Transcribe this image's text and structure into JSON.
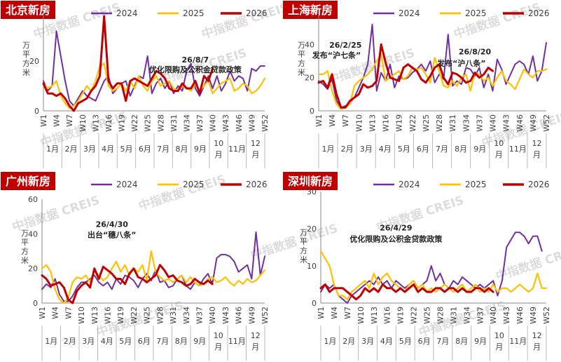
{
  "colors": {
    "s2024": "#7030A0",
    "s2025": "#FFC000",
    "s2026": "#C00000",
    "title_bg": "#C00000",
    "axis": "#888888",
    "text": "#404040"
  },
  "watermark": "中指数据 CREIS",
  "weeks": [
    "W1",
    "W4",
    "W7",
    "W10",
    "W13",
    "W16",
    "W19",
    "W22",
    "W25",
    "W28",
    "W31",
    "W34",
    "W37",
    "W40",
    "W43",
    "W46",
    "W49",
    "W52"
  ],
  "months": [
    "1月",
    "2月",
    "3月",
    "4月",
    "5月",
    "6月",
    "7月",
    "8月",
    "9月",
    "10\n月",
    "11月",
    "12\n月"
  ],
  "chart_data": [
    {
      "type": "line",
      "title": "北京新房",
      "ylabel": "万平方米",
      "ylim": [
        0,
        40
      ],
      "yticks": [
        0,
        20
      ],
      "x_label_weeks": [
        "W1",
        "W4",
        "W7",
        "W10",
        "W13",
        "W16",
        "W19",
        "W22",
        "W25",
        "W28",
        "W31",
        "W34",
        "W37",
        "W40",
        "W43",
        "W46",
        "W49",
        "W52"
      ],
      "month_labels": [
        "1月",
        "2月",
        "3月",
        "4月",
        "5月",
        "6月",
        "7月",
        "8月",
        "9月",
        "10\n月",
        "11月",
        "12\n月"
      ],
      "legend": [
        "2024",
        "2025",
        "2026"
      ],
      "annotations": [
        {
          "text": "26/8/7",
          "week": 36,
          "value": 19.5
        },
        {
          "text": "优化限购及公积金贷款政策",
          "week": 36,
          "value": 15.5
        }
      ],
      "series": [
        {
          "name": "2024",
          "values": [
            12,
            8,
            10,
            32,
            22,
            12,
            4,
            2,
            5,
            8,
            6,
            5,
            4,
            8,
            12,
            14,
            7,
            9,
            11,
            12,
            6,
            10,
            14,
            13,
            22,
            7,
            11,
            13,
            9,
            12,
            7,
            10,
            8,
            16,
            19,
            9,
            6,
            10,
            14,
            9,
            14,
            8,
            11,
            16,
            12,
            14,
            13,
            8,
            17,
            16,
            18,
            18
          ]
        },
        {
          "name": "2025",
          "values": [
            11,
            9,
            10,
            12,
            6,
            3,
            1,
            2,
            4,
            7,
            10,
            8,
            12,
            18,
            19,
            10,
            8,
            9,
            11,
            8,
            12,
            9,
            14,
            10,
            8,
            12,
            14,
            10,
            11,
            12,
            9,
            8,
            10,
            9,
            8,
            11,
            8,
            10,
            12,
            7,
            9,
            11,
            12,
            13,
            8,
            9,
            11,
            10,
            7,
            8,
            10,
            13
          ]
        },
        {
          "name": "2026",
          "values": [
            11,
            7,
            7,
            6,
            7,
            5,
            2,
            0,
            3,
            4,
            5,
            8,
            10,
            14,
            38,
            12,
            9,
            11,
            11,
            4,
            12,
            13,
            12,
            11,
            10,
            13,
            16,
            15,
            13,
            9,
            8,
            8,
            11,
            9,
            9,
            12,
            7,
            14,
            12,
            17
          ]
        }
      ]
    },
    {
      "type": "line",
      "title": "上海新房",
      "ylabel": "万平方米",
      "ylim": [
        0,
        60
      ],
      "yticks": [
        0,
        20,
        40
      ],
      "x_label_weeks": [
        "W1",
        "W4",
        "W7",
        "W10",
        "W13",
        "W16",
        "W19",
        "W22",
        "W25",
        "W28",
        "W31",
        "W34",
        "W37",
        "W40",
        "W43",
        "W46",
        "W49",
        "W52"
      ],
      "month_labels": [
        "1月",
        "2月",
        "3月",
        "4月",
        "5月",
        "6月",
        "7月",
        "8月",
        "9月",
        "10\n月",
        "11月",
        "12\n月"
      ],
      "legend": [
        "2024",
        "2025",
        "2026"
      ],
      "annotations": [
        {
          "text": "26/2/25",
          "week": 7,
          "value": 38
        },
        {
          "text": "发布“沪七条”",
          "week": 5,
          "value": 32
        },
        {
          "text": "26/8/20",
          "week": 36,
          "value": 34
        },
        {
          "text": "发布“沪八条”",
          "week": 33,
          "value": 27
        }
      ],
      "series": [
        {
          "name": "2024",
          "values": [
            18,
            16,
            13,
            19,
            6,
            2,
            3,
            5,
            8,
            14,
            20,
            28,
            52,
            12,
            23,
            18,
            28,
            14,
            21,
            19,
            20,
            23,
            25,
            28,
            24,
            30,
            17,
            22,
            19,
            46,
            15,
            18,
            16,
            26,
            25,
            21,
            26,
            14,
            22,
            12,
            31,
            25,
            16,
            22,
            28,
            30,
            28,
            22,
            33,
            18,
            24,
            41
          ]
        },
        {
          "name": "2025",
          "values": [
            22,
            22,
            24,
            12,
            4,
            1,
            2,
            4,
            15,
            18,
            20,
            22,
            25,
            30,
            34,
            18,
            20,
            22,
            24,
            19,
            21,
            26,
            25,
            26,
            22,
            17,
            32,
            24,
            15,
            14,
            18,
            15,
            20,
            22,
            12,
            23,
            22,
            18,
            20,
            15,
            20,
            24,
            18,
            16,
            13,
            19,
            25,
            22,
            20,
            24,
            24,
            25
          ]
        },
        {
          "name": "2026",
          "values": [
            17,
            18,
            14,
            22,
            10,
            2,
            2,
            6,
            8,
            10,
            16,
            14,
            15,
            18,
            40,
            29,
            20,
            19,
            18,
            26,
            28,
            26,
            24,
            19,
            17,
            21,
            26,
            28,
            20,
            16,
            23,
            22,
            20,
            17,
            18,
            23,
            20,
            22,
            26,
            24
          ]
        }
      ]
    },
    {
      "type": "line",
      "title": "广州新房",
      "ylabel": "万平方米",
      "ylim": [
        0,
        60
      ],
      "yticks": [
        0,
        20,
        40,
        60
      ],
      "x_label_weeks": [
        "W1",
        "W4",
        "W7",
        "W10",
        "W13",
        "W16",
        "W19",
        "W22",
        "W25",
        "W28",
        "W31",
        "W34",
        "W37",
        "W40",
        "W43",
        "W46",
        "W49",
        "W52"
      ],
      "month_labels": [
        "1月",
        "2月",
        "3月",
        "4月",
        "5月",
        "6月",
        "7月",
        "8月",
        "9月",
        "10\n月",
        "11月",
        "12\n月"
      ],
      "legend": [
        "2024",
        "2025",
        "2026"
      ],
      "annotations": [
        {
          "text": "26/4/30",
          "week": 17,
          "value": 44
        },
        {
          "text": "出台“穗八条”",
          "week": 17,
          "value": 38
        }
      ],
      "series": [
        {
          "name": "2024",
          "values": [
            8,
            11,
            9,
            14,
            5,
            1,
            1,
            4,
            9,
            12,
            12,
            14,
            16,
            12,
            10,
            12,
            8,
            14,
            11,
            16,
            15,
            13,
            9,
            14,
            17,
            13,
            19,
            12,
            13,
            9,
            10,
            14,
            16,
            10,
            8,
            12,
            10,
            14,
            17,
            11,
            26,
            28,
            28,
            27,
            24,
            18,
            20,
            22,
            14,
            41,
            16,
            27
          ]
        },
        {
          "name": "2025",
          "values": [
            20,
            22,
            18,
            8,
            2,
            0,
            3,
            12,
            15,
            14,
            16,
            12,
            19,
            16,
            13,
            15,
            20,
            24,
            18,
            22,
            16,
            20,
            18,
            22,
            13,
            30,
            18,
            15,
            13,
            14,
            12,
            14,
            16,
            12,
            15,
            12,
            10,
            11,
            14,
            15,
            12,
            13,
            15,
            12,
            10,
            13,
            11,
            14,
            12,
            13,
            16,
            19
          ]
        },
        {
          "name": "2026",
          "values": [
            16,
            14,
            10,
            11,
            12,
            9,
            2,
            0,
            7,
            10,
            12,
            9,
            20,
            14,
            21,
            19,
            17,
            14,
            14,
            11,
            17,
            20,
            15,
            14,
            12,
            14,
            16,
            22,
            19,
            15,
            16,
            13,
            12,
            10,
            11,
            14,
            12,
            11,
            13,
            11
          ]
        }
      ]
    },
    {
      "type": "line",
      "title": "深圳新房",
      "ylabel": "万平方米",
      "ylim": [
        0,
        30
      ],
      "yticks": [
        0,
        10,
        20,
        30
      ],
      "x_label_weeks": [
        "W1",
        "W4",
        "W7",
        "W10",
        "W13",
        "W16",
        "W19",
        "W22",
        "W25",
        "W28",
        "W31",
        "W34",
        "W37",
        "W40",
        "W43",
        "W46",
        "W49",
        "W52"
      ],
      "month_labels": [
        "1月",
        "2月",
        "3月",
        "4月",
        "5月",
        "6月",
        "7月",
        "8月",
        "9月",
        "10\n月",
        "11月",
        "12\n月"
      ],
      "legend": [
        "2024",
        "2025",
        "2026"
      ],
      "annotations": [
        {
          "text": "26/4/29",
          "week": 18,
          "value": 19.5
        },
        {
          "text": "优化限购及公积金贷款政策",
          "week": 18,
          "value": 16.5
        }
      ],
      "series": [
        {
          "name": "2024",
          "values": [
            3,
            5,
            4,
            5,
            2,
            1,
            0,
            2,
            3,
            4,
            5,
            6,
            5,
            7,
            5,
            6,
            4,
            6,
            5,
            4,
            5,
            6,
            4,
            5,
            6,
            10,
            6,
            8,
            5,
            4,
            6,
            5,
            7,
            6,
            5,
            4,
            5,
            4,
            5,
            6,
            2,
            6,
            15,
            17,
            19,
            19,
            18,
            16,
            18,
            18,
            14
          ]
        },
        {
          "name": "2025",
          "values": [
            14,
            12,
            10,
            5,
            2,
            2,
            1,
            3,
            4,
            5,
            6,
            4,
            8,
            5,
            7,
            8,
            6,
            5,
            4,
            3,
            5,
            6,
            4,
            5,
            3,
            4,
            3,
            4,
            5,
            4,
            3,
            4,
            5,
            3,
            4,
            5,
            3,
            4,
            3,
            5,
            3,
            4,
            4,
            3,
            4,
            5,
            4,
            3,
            4,
            8,
            4,
            4
          ]
        },
        {
          "name": "2026",
          "values": [
            4,
            5,
            3,
            4,
            4,
            4,
            3,
            2,
            1,
            2,
            4,
            3,
            4,
            3,
            5,
            4,
            4,
            3,
            4,
            3,
            4,
            5,
            3,
            4,
            3,
            3,
            4,
            4,
            3,
            4,
            4,
            3,
            4,
            3,
            3,
            4,
            4,
            3,
            4,
            3
          ]
        }
      ]
    }
  ]
}
